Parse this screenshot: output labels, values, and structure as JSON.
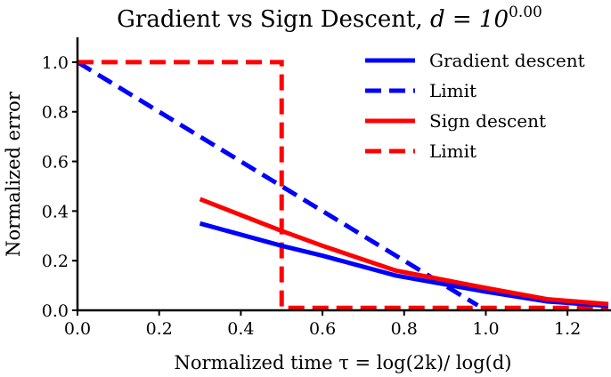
{
  "chart_data": {
    "type": "line",
    "title": "Gradient vs Sign Descent, d = 10^0.00",
    "title_main": "Gradient vs Sign Descent, ",
    "title_math": "d = 10",
    "title_exp": "0.00",
    "xlabel": "Normalized time τ = log(2k)/ log(d)",
    "ylabel": "Normalized error",
    "xlim": [
      0,
      1.3
    ],
    "ylim": [
      0,
      1.1
    ],
    "xticks": [
      0.0,
      0.2,
      0.4,
      0.6,
      0.8,
      1.0,
      1.2
    ],
    "xtick_labels": [
      "0.0",
      "0.2",
      "0.4",
      "0.6",
      "0.8",
      "1.0",
      "1.2"
    ],
    "yticks": [
      0.0,
      0.2,
      0.4,
      0.6,
      0.8,
      1.0
    ],
    "ytick_labels": [
      "0.0",
      "0.2",
      "0.4",
      "0.6",
      "0.8",
      "1.0"
    ],
    "grid": false,
    "legend_position": "top-right",
    "series": [
      {
        "name": "Gradient descent",
        "color": "#0000ff",
        "style": "solid",
        "x": [
          0.3,
          0.5,
          0.6,
          0.78,
          1.0,
          1.15,
          1.3
        ],
        "y": [
          0.35,
          0.26,
          0.22,
          0.14,
          0.075,
          0.036,
          0.018
        ]
      },
      {
        "name": "Limit",
        "color": "#0000ff",
        "style": "dashed",
        "x": [
          0.0,
          0.98
        ],
        "y": [
          1.0,
          0.02
        ]
      },
      {
        "name": "Sign descent",
        "color": "#ff0000",
        "style": "solid",
        "x": [
          0.3,
          0.5,
          0.6,
          0.78,
          1.0,
          1.15,
          1.3
        ],
        "y": [
          0.448,
          0.32,
          0.26,
          0.16,
          0.09,
          0.045,
          0.025
        ]
      },
      {
        "name": "Limit",
        "color": "#ff0000",
        "style": "dashed",
        "x": [
          0.0,
          0.5,
          0.5,
          1.3
        ],
        "y": [
          1.0,
          1.0,
          0.01,
          0.01
        ]
      }
    ]
  }
}
